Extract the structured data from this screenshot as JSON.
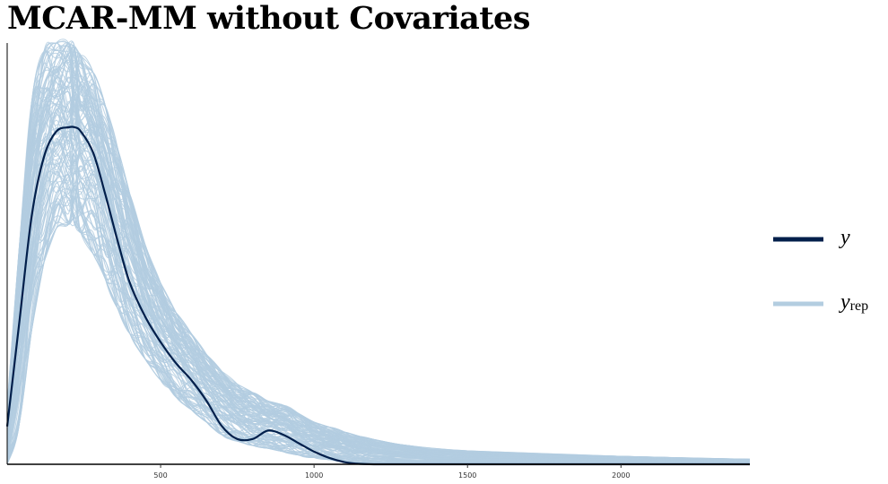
{
  "chart_data": {
    "type": "line",
    "title": "MCAR-MM without Covariates",
    "xlabel": "",
    "ylabel": "",
    "xlim": [
      0,
      2420
    ],
    "ylim": [
      0,
      1.0
    ],
    "x_ticks": [
      500,
      1000,
      1500,
      2000
    ],
    "grid": false,
    "legend_placement": "right",
    "legend": [
      {
        "symbol": "y",
        "subscript": "",
        "color": "#011f4b"
      },
      {
        "symbol": "y",
        "subscript": "rep",
        "color": "#b3cde0"
      }
    ],
    "series": [
      {
        "name": "y",
        "role": "observed",
        "color": "#011f4b",
        "x": [
          0,
          40,
          80,
          120,
          160,
          200,
          220,
          240,
          280,
          320,
          360,
          400,
          450,
          500,
          550,
          600,
          650,
          700,
          750,
          800,
          850,
          900,
          950,
          1000,
          1050,
          1100,
          1150,
          1200,
          1300,
          1500,
          2000,
          2420
        ],
        "y": [
          0.09,
          0.34,
          0.59,
          0.73,
          0.79,
          0.8,
          0.8,
          0.79,
          0.74,
          0.64,
          0.53,
          0.43,
          0.35,
          0.29,
          0.24,
          0.2,
          0.15,
          0.09,
          0.06,
          0.06,
          0.08,
          0.07,
          0.05,
          0.03,
          0.015,
          0.005,
          0.001,
          0.0,
          0.0,
          0.0,
          0.0,
          0.0
        ]
      },
      {
        "name": "y_rep",
        "role": "replicated_draws",
        "color": "#b3cde0",
        "n_draws": 120,
        "x": [
          0,
          40,
          80,
          120,
          160,
          200,
          220,
          240,
          280,
          320,
          360,
          400,
          450,
          500,
          550,
          600,
          650,
          700,
          750,
          800,
          850,
          900,
          950,
          1000,
          1050,
          1100,
          1150,
          1200,
          1300,
          1500,
          2000,
          2420
        ],
        "mean_y": [
          0.05,
          0.3,
          0.58,
          0.75,
          0.82,
          0.83,
          0.82,
          0.8,
          0.74,
          0.65,
          0.55,
          0.46,
          0.37,
          0.3,
          0.25,
          0.21,
          0.17,
          0.13,
          0.11,
          0.095,
          0.085,
          0.075,
          0.062,
          0.052,
          0.044,
          0.037,
          0.031,
          0.026,
          0.02,
          0.013,
          0.007,
          0.004
        ],
        "lower_y": [
          0.0,
          0.1,
          0.32,
          0.48,
          0.56,
          0.57,
          0.57,
          0.55,
          0.5,
          0.44,
          0.37,
          0.31,
          0.25,
          0.2,
          0.16,
          0.13,
          0.1,
          0.07,
          0.055,
          0.045,
          0.038,
          0.03,
          0.022,
          0.016,
          0.011,
          0.007,
          0.005,
          0.003,
          0.001,
          0.0,
          0.0,
          0.0
        ],
        "upper_y": [
          0.14,
          0.52,
          0.86,
          0.98,
          1.0,
          1.0,
          0.99,
          0.97,
          0.93,
          0.85,
          0.75,
          0.64,
          0.52,
          0.43,
          0.36,
          0.31,
          0.26,
          0.22,
          0.19,
          0.17,
          0.15,
          0.14,
          0.12,
          0.1,
          0.088,
          0.076,
          0.066,
          0.058,
          0.045,
          0.032,
          0.019,
          0.012
        ]
      }
    ]
  }
}
